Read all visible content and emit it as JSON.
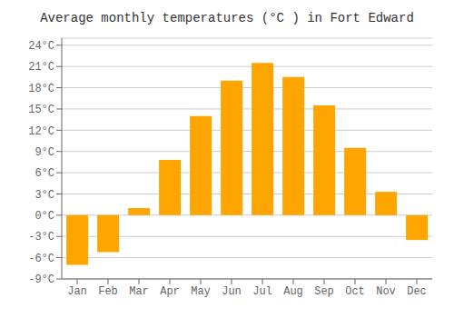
{
  "chart_data": {
    "type": "bar",
    "title": "Average monthly temperatures (°C ) in Fort Edward",
    "categories": [
      "Jan",
      "Feb",
      "Mar",
      "Apr",
      "May",
      "Jun",
      "Jul",
      "Aug",
      "Sep",
      "Oct",
      "Nov",
      "Dec"
    ],
    "values": [
      -7.0,
      -5.2,
      1.0,
      7.8,
      14.0,
      19.0,
      21.5,
      19.5,
      15.5,
      9.5,
      3.3,
      -3.5
    ],
    "color": "#FFA500",
    "ylim": [
      -9,
      25
    ],
    "yticks": [
      {
        "value": -9,
        "label": "-9°C"
      },
      {
        "value": -6,
        "label": "-6°C"
      },
      {
        "value": -3,
        "label": "-3°C"
      },
      {
        "value": 0,
        "label": "0°C"
      },
      {
        "value": 3,
        "label": "3°C"
      },
      {
        "value": 6,
        "label": "6°C"
      },
      {
        "value": 9,
        "label": "9°C"
      },
      {
        "value": 12,
        "label": "12°C"
      },
      {
        "value": 15,
        "label": "15°C"
      },
      {
        "value": 18,
        "label": "18°C"
      },
      {
        "value": 21,
        "label": "21°C"
      },
      {
        "value": 24,
        "label": "24°C"
      }
    ],
    "grid": true
  }
}
